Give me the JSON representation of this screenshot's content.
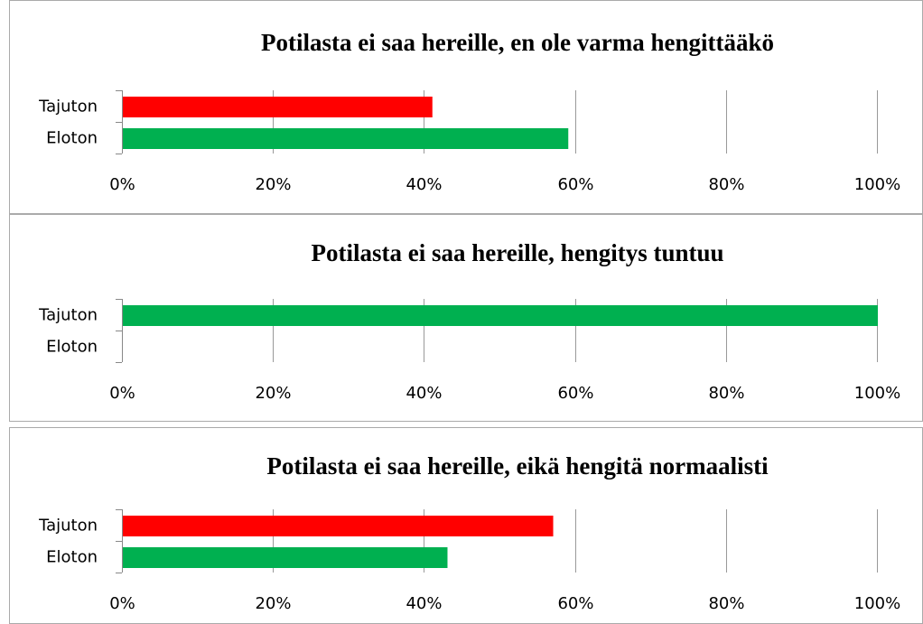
{
  "chart_data": [
    {
      "type": "bar",
      "title": "Potilasta ei saa hereille, en ole varma hengittääkö",
      "categories": [
        "Tajuton",
        "Eloton"
      ],
      "values": [
        41,
        59
      ],
      "colors": [
        "#ff0000",
        "#00b050"
      ],
      "xlim": [
        0,
        100
      ],
      "xticks": [
        {
          "value": 0,
          "label": "0%"
        },
        {
          "value": 20,
          "label": "20%"
        },
        {
          "value": 40,
          "label": "40%"
        },
        {
          "value": 60,
          "label": "60%"
        },
        {
          "value": 80,
          "label": "80%"
        },
        {
          "value": 100,
          "label": "100%"
        }
      ],
      "grid": true
    },
    {
      "type": "bar",
      "title": "Potilasta ei saa hereille, hengitys tuntuu",
      "categories": [
        "Tajuton",
        "Eloton"
      ],
      "values": [
        100,
        0
      ],
      "colors": [
        "#00b050",
        "#00b050"
      ],
      "xlim": [
        0,
        100
      ],
      "xticks": [
        {
          "value": 0,
          "label": "0%"
        },
        {
          "value": 20,
          "label": "20%"
        },
        {
          "value": 40,
          "label": "40%"
        },
        {
          "value": 60,
          "label": "60%"
        },
        {
          "value": 80,
          "label": "80%"
        },
        {
          "value": 100,
          "label": "100%"
        }
      ],
      "grid": true
    },
    {
      "type": "bar",
      "title": "Potilasta ei saa hereille, eikä hengitä normaalisti",
      "categories": [
        "Tajuton",
        "Eloton"
      ],
      "values": [
        57,
        43
      ],
      "colors": [
        "#ff0000",
        "#00b050"
      ],
      "xlim": [
        0,
        100
      ],
      "xticks": [
        {
          "value": 0,
          "label": "0%"
        },
        {
          "value": 20,
          "label": "20%"
        },
        {
          "value": 40,
          "label": "40%"
        },
        {
          "value": 60,
          "label": "60%"
        },
        {
          "value": 80,
          "label": "80%"
        },
        {
          "value": 100,
          "label": "100%"
        }
      ],
      "grid": true
    }
  ]
}
